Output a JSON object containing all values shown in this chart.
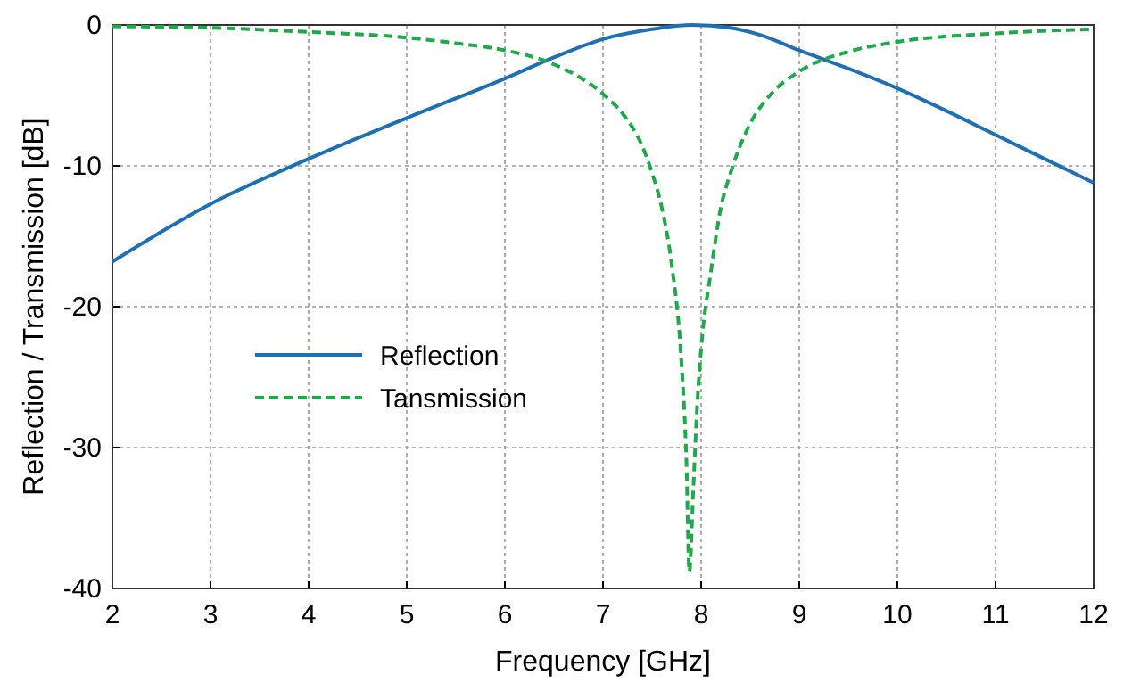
{
  "chart_data": {
    "type": "line",
    "xlabel": "Frequency [GHz]",
    "ylabel": "Reflection / Transmission [dB]",
    "xlim": [
      2,
      12
    ],
    "ylim": [
      -40,
      0
    ],
    "xticks": [
      2,
      3,
      4,
      5,
      6,
      7,
      8,
      9,
      10,
      11,
      12
    ],
    "yticks": [
      -40,
      -30,
      -20,
      -10,
      0
    ],
    "grid": true,
    "legend": "left",
    "marker": "none",
    "series": [
      {
        "name": "Reflection",
        "color": "#1f6fb5",
        "line_style": "solid",
        "x": [
          2,
          3,
          4,
          5,
          6,
          6.5,
          7,
          7.5,
          7.9,
          8.3,
          8.6,
          9,
          9.5,
          10,
          10.5,
          11,
          11.5,
          12
        ],
        "values": [
          -16.8,
          -12.7,
          -9.5,
          -6.6,
          -3.8,
          -2.3,
          -1.0,
          -0.3,
          0,
          -0.2,
          -0.7,
          -1.8,
          -3.1,
          -4.5,
          -6.1,
          -7.8,
          -9.5,
          -11.2
        ]
      },
      {
        "name": "Tansmission",
        "color": "#1faa4a",
        "line_style": "dashed",
        "x": [
          2,
          3,
          4,
          5,
          5.5,
          6,
          6.5,
          7,
          7.2,
          7.4,
          7.5,
          7.6,
          7.7,
          7.8,
          7.85,
          7.88,
          7.92,
          7.96,
          8.0,
          8.1,
          8.2,
          8.3,
          8.5,
          8.7,
          9,
          9.5,
          10,
          11,
          12
        ],
        "values": [
          -0.1,
          -0.2,
          -0.5,
          -0.9,
          -1.3,
          -1.8,
          -2.8,
          -4.9,
          -6.3,
          -8.6,
          -10.5,
          -13,
          -17,
          -24,
          -31,
          -38.8,
          -33,
          -27,
          -23,
          -17.5,
          -13,
          -10.5,
          -7,
          -5,
          -3.3,
          -1.9,
          -1.2,
          -0.6,
          -0.3
        ]
      }
    ]
  }
}
